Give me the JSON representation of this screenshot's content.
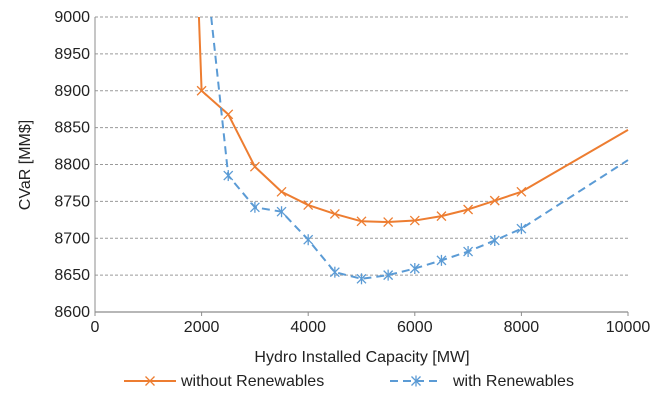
{
  "chart_data": {
    "type": "line",
    "xlabel": "Hydro Installed Capacity [MW]",
    "ylabel": "CVaR [MM$]",
    "xlim": [
      0,
      10000
    ],
    "ylim": [
      8600,
      9000
    ],
    "x_ticks": [
      "0",
      "2000",
      "4000",
      "6000",
      "8000",
      "10000"
    ],
    "y_ticks": [
      "8600",
      "8650",
      "8700",
      "8750",
      "8800",
      "8850",
      "8900",
      "8950",
      "9000"
    ],
    "grid": "horizontal-dashed",
    "legend_position": "bottom",
    "series": [
      {
        "name": "without Renewables",
        "color": "#ED7D31",
        "line_style": "solid",
        "marker": "x",
        "points": [
          [
            1950,
            9000
          ],
          [
            2000,
            8900
          ],
          [
            2500,
            8868
          ],
          [
            3000,
            8797
          ],
          [
            3500,
            8763
          ],
          [
            4000,
            8745
          ],
          [
            4500,
            8733
          ],
          [
            5000,
            8723
          ],
          [
            5500,
            8722
          ],
          [
            6000,
            8724
          ],
          [
            6500,
            8730
          ],
          [
            7000,
            8739
          ],
          [
            7500,
            8751
          ],
          [
            8000,
            8763
          ],
          [
            10000,
            8847
          ]
        ],
        "marked": [
          false,
          true,
          true,
          true,
          true,
          true,
          true,
          true,
          true,
          true,
          true,
          true,
          true,
          true,
          false
        ]
      },
      {
        "name": "with Renewables",
        "color": "#5B9BD5",
        "line_style": "dashed",
        "marker": "asterisk",
        "points": [
          [
            2180,
            9000
          ],
          [
            2500,
            8785
          ],
          [
            3000,
            8742
          ],
          [
            3500,
            8736
          ],
          [
            4000,
            8698
          ],
          [
            4500,
            8654
          ],
          [
            5000,
            8645
          ],
          [
            5500,
            8650
          ],
          [
            6000,
            8659
          ],
          [
            6500,
            8670
          ],
          [
            7000,
            8682
          ],
          [
            7500,
            8697
          ],
          [
            8000,
            8713
          ],
          [
            10000,
            8806
          ]
        ],
        "marked": [
          false,
          true,
          true,
          true,
          true,
          true,
          true,
          true,
          true,
          true,
          true,
          true,
          true,
          false
        ]
      }
    ]
  }
}
